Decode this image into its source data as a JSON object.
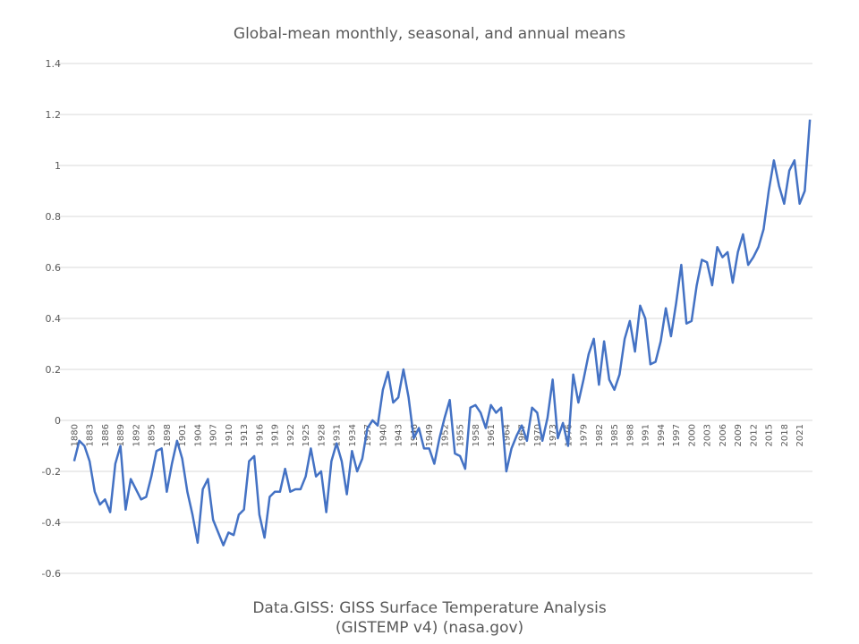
{
  "chart_data": {
    "type": "line",
    "title": "Global-mean monthly, seasonal, and annual means",
    "source_line1": "Data.GISS: GISS Surface Temperature Analysis",
    "source_line2": "(GISTEMP v4) (nasa.gov)",
    "xlabel": "",
    "ylabel": "",
    "ylim": [
      -0.6,
      1.4
    ],
    "yticks": [
      -0.6,
      -0.4,
      -0.2,
      0,
      0.2,
      0.4,
      0.6,
      0.8,
      1,
      1.2,
      1.4
    ],
    "x_start": 1880,
    "x_end": 2023,
    "x_tick_step": 3,
    "grid": true,
    "legend": "none",
    "line_color": "#4472C4",
    "values": [
      -0.16,
      -0.08,
      -0.1,
      -0.16,
      -0.28,
      -0.33,
      -0.31,
      -0.36,
      -0.17,
      -0.1,
      -0.35,
      -0.23,
      -0.27,
      -0.31,
      -0.3,
      -0.22,
      -0.12,
      -0.11,
      -0.28,
      -0.17,
      -0.08,
      -0.15,
      -0.28,
      -0.37,
      -0.48,
      -0.27,
      -0.23,
      -0.39,
      -0.44,
      -0.49,
      -0.44,
      -0.45,
      -0.37,
      -0.35,
      -0.16,
      -0.14,
      -0.37,
      -0.46,
      -0.3,
      -0.28,
      -0.28,
      -0.19,
      -0.28,
      -0.27,
      -0.27,
      -0.22,
      -0.11,
      -0.22,
      -0.2,
      -0.36,
      -0.16,
      -0.09,
      -0.16,
      -0.29,
      -0.12,
      -0.2,
      -0.15,
      -0.03,
      0.0,
      -0.02,
      0.12,
      0.19,
      0.07,
      0.09,
      0.2,
      0.09,
      -0.07,
      -0.03,
      -0.11,
      -0.11,
      -0.17,
      -0.07,
      0.01,
      0.08,
      -0.13,
      -0.14,
      -0.19,
      0.05,
      0.06,
      0.03,
      -0.03,
      0.06,
      0.03,
      0.05,
      -0.2,
      -0.11,
      -0.06,
      -0.02,
      -0.08,
      0.05,
      0.03,
      -0.08,
      0.01,
      0.16,
      -0.07,
      -0.01,
      -0.1,
      0.18,
      0.07,
      0.16,
      0.26,
      0.32,
      0.14,
      0.31,
      0.16,
      0.12,
      0.18,
      0.32,
      0.39,
      0.27,
      0.45,
      0.4,
      0.22,
      0.23,
      0.31,
      0.44,
      0.33,
      0.46,
      0.61,
      0.38,
      0.39,
      0.53,
      0.63,
      0.62,
      0.53,
      0.68,
      0.64,
      0.66,
      0.54,
      0.66,
      0.73,
      0.61,
      0.64,
      0.68,
      0.75,
      0.9,
      1.02,
      0.92,
      0.85,
      0.98,
      1.02,
      0.85,
      0.9,
      1.18
    ]
  }
}
